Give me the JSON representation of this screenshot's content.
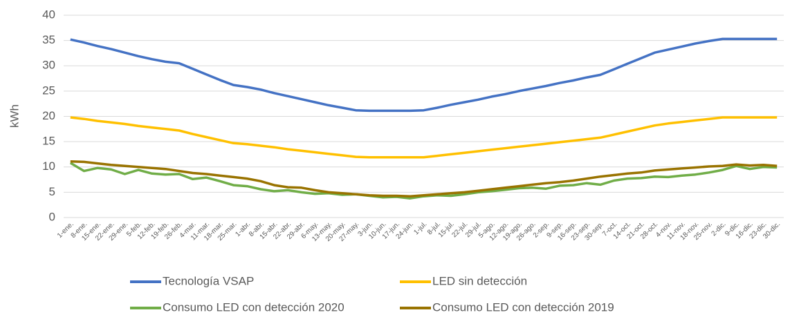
{
  "chart_data": {
    "type": "line",
    "y_label": "kWh",
    "categories": [
      "1-ene.",
      "8-ene.",
      "15-ene.",
      "22-ene.",
      "29-ene.",
      "5-feb.",
      "12-feb.",
      "19-feb.",
      "26-feb.",
      "4-mar.",
      "11-mar.",
      "18-mar.",
      "25-mar.",
      "1-abr.",
      "8-abr.",
      "15-abr.",
      "22-abr.",
      "29-abr.",
      "6-may.",
      "13-may.",
      "20-may.",
      "27-may.",
      "3-jun.",
      "10-jun.",
      "17-jun.",
      "24-jun.",
      "1-jul.",
      "8-jul.",
      "15-jul.",
      "22-jul.",
      "29-jul.",
      "5-ago.",
      "12-ago.",
      "19-ago.",
      "26-ago.",
      "2-sep.",
      "9-sep.",
      "16-sep.",
      "23-sep.",
      "30-sep.",
      "7-oct.",
      "14-oct.",
      "21-oct.",
      "28-oct.",
      "4-nov.",
      "11-nov.",
      "18-nov.",
      "25-nov.",
      "2-dic.",
      "9-dic.",
      "16-dic.",
      "23-dic.",
      "30-dic."
    ],
    "series": [
      {
        "name": "Tecnología VSAP",
        "color": "#4472c4",
        "values": [
          35.2,
          34.6,
          33.9,
          33.3,
          32.6,
          31.9,
          31.3,
          30.8,
          30.5,
          29.4,
          28.3,
          27.2,
          26.2,
          25.8,
          25.3,
          24.6,
          24.0,
          23.4,
          22.8,
          22.2,
          21.7,
          21.2,
          21.1,
          21.1,
          21.1,
          21.1,
          21.2,
          21.7,
          22.3,
          22.8,
          23.3,
          23.9,
          24.4,
          25.0,
          25.5,
          26.0,
          26.6,
          27.1,
          27.7,
          28.2,
          29.3,
          30.4,
          31.5,
          32.6,
          33.2,
          33.8,
          34.4,
          34.9,
          35.3,
          35.3,
          35.3,
          35.3,
          35.3
        ]
      },
      {
        "name": "LED sin detección",
        "color": "#ffc000",
        "values": [
          19.8,
          19.5,
          19.1,
          18.8,
          18.5,
          18.1,
          17.8,
          17.5,
          17.2,
          16.5,
          15.9,
          15.3,
          14.7,
          14.5,
          14.2,
          13.9,
          13.5,
          13.2,
          12.9,
          12.6,
          12.3,
          12.0,
          11.9,
          11.9,
          11.9,
          11.9,
          11.9,
          12.2,
          12.5,
          12.8,
          13.1,
          13.4,
          13.7,
          14.0,
          14.3,
          14.6,
          14.9,
          15.2,
          15.5,
          15.8,
          16.4,
          17.0,
          17.6,
          18.2,
          18.6,
          18.9,
          19.2,
          19.5,
          19.8,
          19.8,
          19.8,
          19.8,
          19.8
        ]
      },
      {
        "name": "Consumo LED con detección 2020",
        "color": "#70ad47",
        "values": [
          10.8,
          9.2,
          9.8,
          9.5,
          8.6,
          9.4,
          8.7,
          8.5,
          8.6,
          7.6,
          7.9,
          7.2,
          6.4,
          6.2,
          5.6,
          5.2,
          5.4,
          5.0,
          4.7,
          4.8,
          4.5,
          4.6,
          4.3,
          4.0,
          4.1,
          3.8,
          4.2,
          4.4,
          4.3,
          4.6,
          5.0,
          5.2,
          5.5,
          5.8,
          5.9,
          5.7,
          6.3,
          6.4,
          6.8,
          6.5,
          7.3,
          7.7,
          7.8,
          8.1,
          8.0,
          8.3,
          8.5,
          8.9,
          9.4,
          10.2,
          9.6,
          10.0,
          9.9
        ]
      },
      {
        "name": "Consumo LED con detección 2019",
        "color": "#997300",
        "values": [
          11.1,
          11.0,
          10.7,
          10.4,
          10.2,
          10.0,
          9.8,
          9.6,
          9.2,
          8.8,
          8.6,
          8.3,
          8.0,
          7.7,
          7.2,
          6.4,
          6.0,
          5.9,
          5.4,
          5.0,
          4.8,
          4.6,
          4.4,
          4.3,
          4.3,
          4.2,
          4.4,
          4.6,
          4.8,
          5.0,
          5.3,
          5.6,
          5.9,
          6.2,
          6.5,
          6.8,
          7.0,
          7.3,
          7.7,
          8.1,
          8.4,
          8.7,
          8.9,
          9.3,
          9.5,
          9.7,
          9.9,
          10.1,
          10.2,
          10.5,
          10.3,
          10.4,
          10.2
        ]
      }
    ],
    "ylim": [
      0,
      40
    ],
    "yticks": [
      0,
      5,
      10,
      15,
      20,
      25,
      30,
      35,
      40
    ],
    "grid": true,
    "legend": "bottom"
  }
}
